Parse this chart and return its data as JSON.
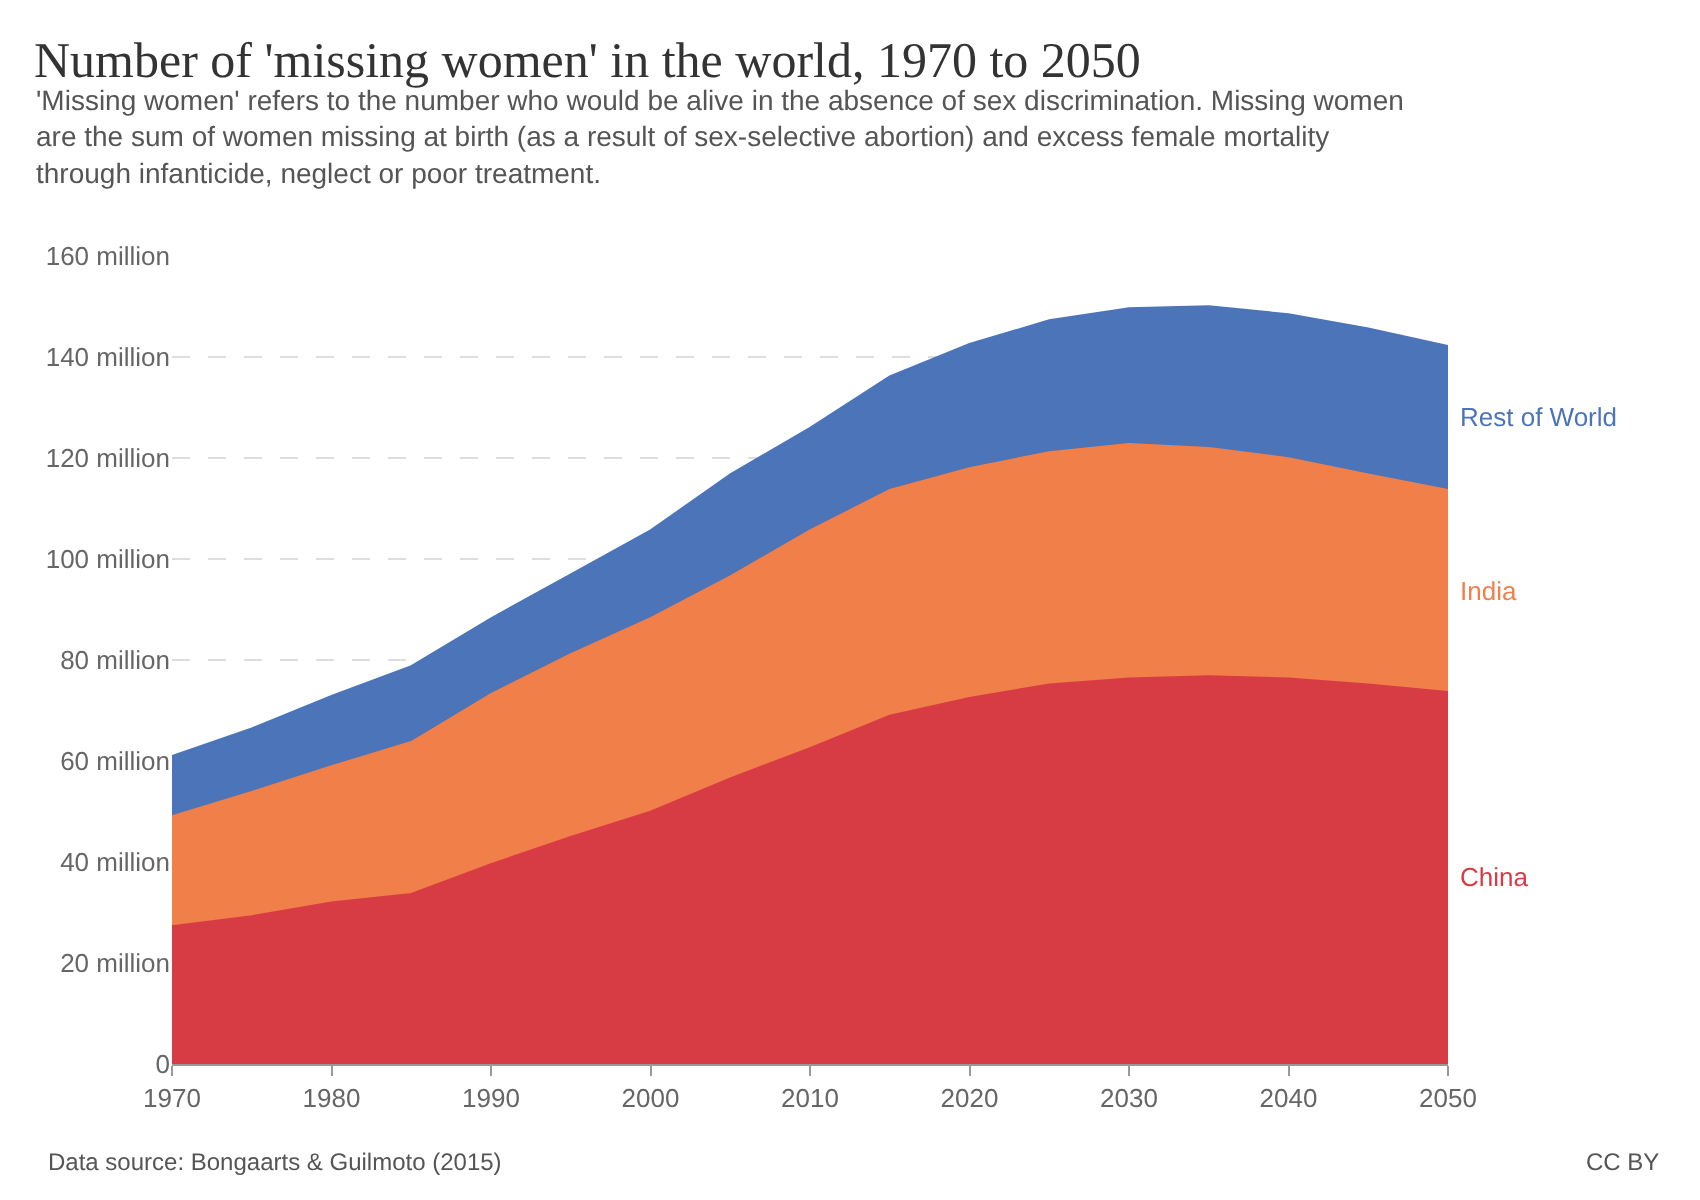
{
  "chart_data": {
    "type": "area",
    "stacked": true,
    "title": "Number of 'missing women' in the world, 1970 to 2050",
    "subtitle": "'Missing women' refers to the number who would be alive in the absence of sex discrimination. Missing women are the sum of women missing at birth (as a result of sex-selective abortion) and excess female mortality through infanticide, neglect or poor treatment.",
    "x": [
      1970,
      1975,
      1980,
      1985,
      1990,
      1995,
      2000,
      2005,
      2010,
      2015,
      2020,
      2025,
      2030,
      2035,
      2040,
      2045,
      2050
    ],
    "series": [
      {
        "name": "China",
        "color": "#d73c44",
        "values": [
          27.3,
          29.3,
          32,
          33.7,
          39.6,
          45,
          50,
          56.6,
          62.6,
          69,
          72.5,
          75.2,
          76.4,
          76.8,
          76.4,
          75.2,
          73.7
        ]
      },
      {
        "name": "India",
        "color": "#f07f4a",
        "values": [
          21.8,
          24.6,
          27,
          30.1,
          33.7,
          36.2,
          38.3,
          40,
          43.1,
          44.7,
          45.5,
          46,
          46.4,
          45.2,
          43.6,
          41.6,
          40
        ]
      },
      {
        "name": "Rest of World",
        "color": "#4c74b8",
        "values": [
          11.9,
          12.6,
          13.9,
          15,
          15,
          15.8,
          17.4,
          20.2,
          20.3,
          22.5,
          24.6,
          26.1,
          26.9,
          28.1,
          28.5,
          28.9,
          28.5
        ]
      }
    ],
    "xlim": [
      1970,
      2050
    ],
    "xticks": [
      1970,
      1980,
      1990,
      2000,
      2010,
      2020,
      2030,
      2040,
      2050
    ],
    "ylim": [
      0,
      160
    ],
    "yticks": [
      0,
      {
        "value": 20,
        "label": "20 million"
      },
      {
        "value": 40,
        "label": "40 million"
      },
      {
        "value": 60,
        "label": "60 million"
      },
      {
        "value": 80,
        "label": "80 million"
      },
      {
        "value": 100,
        "label": "100 million"
      },
      {
        "value": 120,
        "label": "120 million"
      },
      {
        "value": 140,
        "label": "140 million"
      },
      {
        "value": 160,
        "label": "160 million"
      }
    ],
    "grid": "y",
    "legend": false,
    "annotations": [
      "Data source: Bongaarts & Guilmoto (2015)",
      "CC BY"
    ]
  }
}
